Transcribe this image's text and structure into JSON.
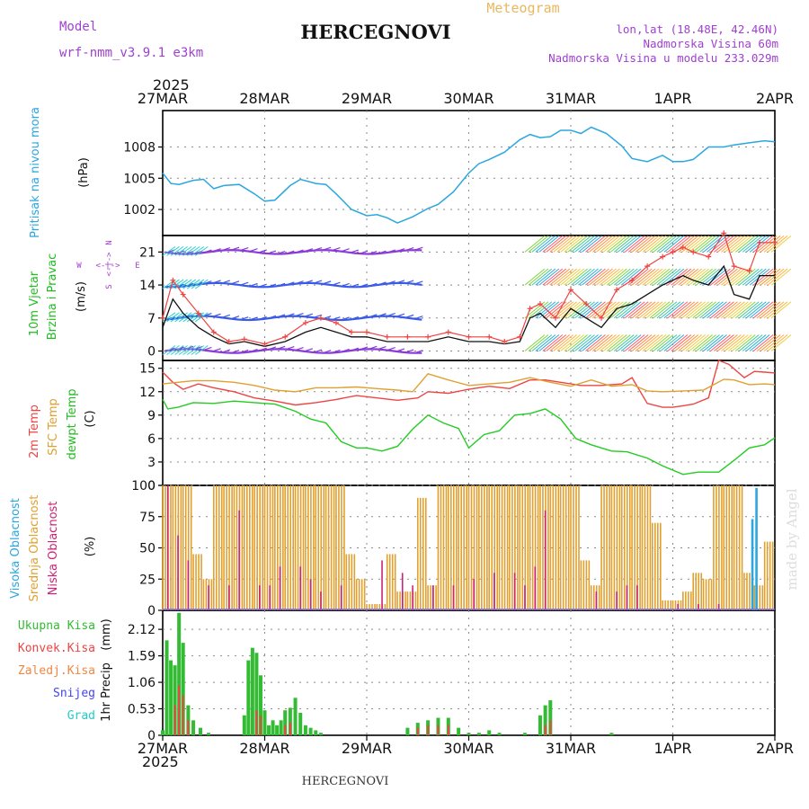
{
  "header": {
    "model_label": "Model",
    "model_name": "wrf-nmm_v3.9.1 e3km",
    "title": "HERCEGNOVI",
    "subtitle": "Meteogram",
    "lonlat": "lon,lat (18.48E, 42.46N)",
    "altitude": "Nadmorska Visina 60m",
    "model_altitude": "Nadmorska Visina u modelu 233.029m",
    "year_top": "2025",
    "year_bottom": "2025",
    "footer_title": "HERCEGNOVI",
    "watermark": "made by Angel"
  },
  "colors": {
    "pressure": "#2aa7e0",
    "wind_label": "#22bb22",
    "wind_dir_label": "#a040d0",
    "t2m": "#ee4444",
    "tsfc": "#e0a030",
    "dewpt": "#22cc22",
    "cloud_high": "#2aa7e0",
    "cloud_mid": "#e0a030",
    "cloud_low": "#cc2277",
    "precip_total": "#33bb33",
    "precip_conv": "#ee4444",
    "precip_strat": "#ee8844",
    "snow": "#4444ee",
    "grad": "#22cccc",
    "header_purple": "#a040d0",
    "header_orange": "#e8b860"
  },
  "axes": {
    "dates": [
      "27MAR",
      "28MAR",
      "29MAR",
      "30MAR",
      "31MAR",
      "1APR",
      "2APR"
    ],
    "pressure": {
      "label": "Pritisak na nivou mora",
      "unit": "(hPa)",
      "ticks": [
        "1008",
        "1005",
        "1002"
      ]
    },
    "wind": {
      "label1": "10m Vjetar",
      "label2": "Brzina i Pravac",
      "unit": "(m/s)",
      "ticks": [
        "21",
        "14",
        "7",
        "0"
      ],
      "compass_n": "N",
      "compass_s": "S",
      "compass_w": "W",
      "compass_e": "E",
      "compass_arrow": "<-|->"
    },
    "temp": {
      "label1": "2m Temp",
      "label2": "SFC Temp",
      "label3": "dewpt Temp",
      "unit": "(C)",
      "ticks": [
        "15",
        "12",
        "9",
        "6",
        "3",
        "0"
      ]
    },
    "cloud": {
      "label1": "Visoka Oblacnost",
      "label2": "Srednja Oblacnost",
      "label3": "Niska Oblacnost",
      "unit": "(%)",
      "ticks": [
        "100",
        "75",
        "50",
        "25",
        "0"
      ]
    },
    "precip": {
      "label": "1hr Precip",
      "unit": "(mm)",
      "ticks": [
        "2.12",
        "1.59",
        "1.06",
        "0.53",
        "0"
      ],
      "legend": [
        "Ukupna Kisa",
        "Konvek.Kisa",
        "Zaledj.Kisa",
        "Snijeg",
        "Grad"
      ]
    }
  },
  "chart_data": [
    {
      "type": "line",
      "title": "Pritisak na nivou mora",
      "ylabel": "(hPa)",
      "x_range_days": [
        0,
        6
      ],
      "ylim": [
        999.5,
        1011.5
      ],
      "series": [
        {
          "name": "MSLP",
          "x": [
            0,
            0.08,
            0.16,
            0.3,
            0.4,
            0.5,
            0.6,
            0.75,
            0.9,
            1.0,
            1.1,
            1.25,
            1.35,
            1.5,
            1.6,
            1.7,
            1.85,
            2.0,
            2.1,
            2.2,
            2.3,
            2.45,
            2.6,
            2.7,
            2.85,
            3.0,
            3.1,
            3.2,
            3.35,
            3.5,
            3.6,
            3.7,
            3.8,
            3.9,
            4.0,
            4.1,
            4.2,
            4.35,
            4.5,
            4.6,
            4.75,
            4.9,
            5.0,
            5.1,
            5.2,
            5.35,
            5.5,
            5.6,
            5.75,
            5.9,
            6.0
          ],
          "values": [
            1005.5,
            1004.5,
            1004.4,
            1004.8,
            1004.9,
            1004.0,
            1004.3,
            1004.4,
            1003.5,
            1002.8,
            1002.9,
            1004.3,
            1004.9,
            1004.5,
            1004.4,
            1003.5,
            1002.0,
            1001.4,
            1001.5,
            1001.2,
            1000.7,
            1001.3,
            1002.1,
            1002.5,
            1003.7,
            1005.5,
            1006.4,
            1006.8,
            1007.5,
            1008.7,
            1009.2,
            1008.9,
            1009.0,
            1009.6,
            1009.6,
            1009.3,
            1009.9,
            1009.3,
            1008.1,
            1006.9,
            1006.6,
            1007.2,
            1006.6,
            1006.6,
            1006.8,
            1008.0,
            1008.0,
            1008.2,
            1008.4,
            1008.6,
            1008.5
          ]
        }
      ]
    },
    {
      "type": "line",
      "title": "10m Vjetar Brzina i Pravac",
      "ylabel": "(m/s)",
      "x_range_days": [
        0,
        6
      ],
      "ylim": [
        -2,
        24.5
      ],
      "series": [
        {
          "name": "Brzina",
          "x": [
            0,
            0.1,
            0.2,
            0.35,
            0.5,
            0.65,
            0.8,
            1.0,
            1.2,
            1.4,
            1.55,
            1.7,
            1.85,
            2.0,
            2.2,
            2.4,
            2.6,
            2.8,
            3.0,
            3.2,
            3.35,
            3.5,
            3.6,
            3.7,
            3.85,
            4.0,
            4.15,
            4.3,
            4.45,
            4.6,
            4.75,
            4.9,
            5.0,
            5.1,
            5.2,
            5.35,
            5.5,
            5.6,
            5.75,
            5.85,
            6.0
          ],
          "values": [
            5,
            11,
            8,
            5,
            3,
            1.5,
            2,
            1,
            2,
            4,
            5,
            4,
            3,
            3,
            2,
            2,
            2,
            3,
            2,
            2,
            1.5,
            2,
            7,
            8,
            5,
            9,
            7,
            5,
            9,
            10,
            12,
            14,
            15,
            16,
            15,
            14,
            18,
            12,
            11,
            16,
            16
          ]
        },
        {
          "name": "Udari",
          "x": [
            0,
            0.1,
            0.2,
            0.35,
            0.5,
            0.65,
            0.8,
            1.0,
            1.2,
            1.4,
            1.55,
            1.7,
            1.85,
            2.0,
            2.2,
            2.4,
            2.6,
            2.8,
            3.0,
            3.2,
            3.35,
            3.5,
            3.6,
            3.7,
            3.85,
            4.0,
            4.15,
            4.3,
            4.45,
            4.6,
            4.75,
            4.9,
            5.0,
            5.1,
            5.2,
            5.35,
            5.5,
            5.6,
            5.75,
            5.85,
            6.0
          ],
          "values": [
            7,
            15,
            12,
            8,
            4,
            2,
            2.5,
            1.5,
            3,
            6,
            7,
            6,
            4,
            4,
            3,
            3,
            3,
            4,
            3,
            3,
            2,
            3,
            9,
            10,
            7,
            13,
            10,
            7,
            13,
            15,
            18,
            20,
            21,
            22,
            21,
            20,
            25,
            18,
            17,
            23,
            23
          ]
        }
      ],
      "direction_bands_ms": [
        21,
        14,
        7,
        0
      ],
      "direction_scale": "N <-> S, W <-> E"
    },
    {
      "type": "line",
      "title": "Temperature",
      "ylabel": "(C)",
      "x_range_days": [
        0,
        6
      ],
      "ylim": [
        0,
        16
      ],
      "series": [
        {
          "name": "2m Temp",
          "x": [
            0,
            0.1,
            0.2,
            0.35,
            0.5,
            0.7,
            0.9,
            1.1,
            1.3,
            1.5,
            1.7,
            1.9,
            2.1,
            2.3,
            2.5,
            2.6,
            2.8,
            3.0,
            3.2,
            3.4,
            3.6,
            3.75,
            3.9,
            4.1,
            4.3,
            4.5,
            4.6,
            4.75,
            4.9,
            5.0,
            5.1,
            5.2,
            5.35,
            5.45,
            5.55,
            5.7,
            5.8,
            5.9,
            6.0
          ],
          "values": [
            14.5,
            13.2,
            12.3,
            13.0,
            12.5,
            12.0,
            11.2,
            10.8,
            10.3,
            10.6,
            11.0,
            11.5,
            11.2,
            10.9,
            11.2,
            12.0,
            11.8,
            12.3,
            12.7,
            12.4,
            13.5,
            13.5,
            13.2,
            12.8,
            12.8,
            13.0,
            13.8,
            10.5,
            10.0,
            10.0,
            10.2,
            10.4,
            11.2,
            16.0,
            15.5,
            13.8,
            14.6,
            14.5,
            14.4
          ]
        },
        {
          "name": "SFC Temp",
          "x": [
            0,
            0.15,
            0.3,
            0.5,
            0.7,
            0.9,
            1.1,
            1.3,
            1.5,
            1.7,
            1.9,
            2.1,
            2.3,
            2.45,
            2.6,
            2.8,
            3.0,
            3.2,
            3.4,
            3.6,
            3.8,
            4.0,
            4.2,
            4.4,
            4.6,
            4.75,
            4.9,
            5.1,
            5.3,
            5.5,
            5.6,
            5.75,
            5.9,
            6.0
          ],
          "values": [
            13.0,
            13.2,
            13.4,
            13.4,
            13.2,
            12.8,
            12.2,
            12.0,
            12.5,
            12.5,
            12.6,
            12.4,
            12.2,
            12.0,
            14.3,
            13.5,
            12.8,
            13.0,
            13.2,
            13.8,
            13.2,
            12.7,
            13.5,
            12.7,
            12.9,
            12.1,
            12.0,
            12.1,
            12.2,
            13.6,
            13.5,
            12.9,
            13.0,
            12.9
          ]
        },
        {
          "name": "dewpt Temp",
          "x": [
            0,
            0.05,
            0.15,
            0.3,
            0.5,
            0.7,
            0.9,
            1.1,
            1.3,
            1.45,
            1.6,
            1.75,
            1.9,
            2.0,
            2.15,
            2.3,
            2.45,
            2.6,
            2.75,
            2.9,
            3.0,
            3.15,
            3.3,
            3.45,
            3.6,
            3.75,
            3.9,
            4.05,
            4.2,
            4.4,
            4.55,
            4.75,
            4.9,
            5.1,
            5.25,
            5.45,
            5.6,
            5.75,
            5.9,
            6.0
          ],
          "values": [
            11.0,
            9.8,
            10.0,
            10.6,
            10.5,
            10.8,
            10.6,
            10.4,
            9.5,
            8.5,
            8.0,
            5.6,
            4.8,
            4.8,
            4.4,
            5.0,
            7.2,
            9.0,
            8.0,
            7.3,
            4.8,
            6.5,
            7.0,
            9.0,
            9.2,
            9.8,
            8.5,
            6.0,
            5.2,
            4.4,
            4.3,
            3.5,
            2.5,
            1.4,
            1.7,
            1.7,
            3.2,
            4.8,
            5.2,
            6.1
          ]
        }
      ]
    },
    {
      "type": "bar",
      "title": "Oblacnost",
      "ylabel": "(%)",
      "x_range_days": [
        0,
        6
      ],
      "ylim": [
        0,
        100
      ],
      "series": [
        {
          "name": "Visoka Oblacnost",
          "x": [
            5.78,
            5.82
          ],
          "values": [
            73,
            98
          ]
        },
        {
          "name": "Srednja Oblacnost",
          "x": [
            0.0,
            0.1,
            0.2,
            0.3,
            0.4,
            0.5,
            0.6,
            0.7,
            0.8,
            0.9,
            1.0,
            1.1,
            1.2,
            1.3,
            1.4,
            1.5,
            1.6,
            1.7,
            1.8,
            1.9,
            2.0,
            2.1,
            2.2,
            2.3,
            2.4,
            2.5,
            2.6,
            2.7,
            2.8,
            2.9,
            3.0,
            3.1,
            3.2,
            3.3,
            3.4,
            3.5,
            3.6,
            3.7,
            3.8,
            3.9,
            4.0,
            4.1,
            4.2,
            4.3,
            4.4,
            4.5,
            4.6,
            4.7,
            4.8,
            4.9,
            5.0,
            5.1,
            5.2,
            5.3,
            5.4,
            5.5,
            5.6,
            5.7,
            5.8,
            5.9
          ],
          "values": [
            100,
            100,
            100,
            45,
            25,
            100,
            100,
            100,
            100,
            100,
            100,
            100,
            100,
            100,
            100,
            100,
            100,
            100,
            45,
            25,
            5,
            5,
            45,
            15,
            15,
            90,
            20,
            100,
            100,
            100,
            100,
            100,
            100,
            100,
            100,
            100,
            100,
            100,
            100,
            100,
            100,
            40,
            20,
            100,
            100,
            100,
            100,
            100,
            70,
            8,
            8,
            15,
            30,
            25,
            100,
            100,
            100,
            30,
            20,
            55
          ]
        },
        {
          "name": "Niska Oblacnost",
          "x": [
            0.05,
            0.15,
            0.25,
            0.45,
            0.65,
            0.75,
            0.95,
            1.05,
            1.15,
            1.35,
            1.45,
            1.55,
            1.75,
            2.15,
            2.35,
            2.45,
            2.65,
            2.85,
            3.05,
            3.25,
            3.45,
            3.55,
            3.65,
            3.75,
            4.25,
            4.45,
            4.55,
            4.65,
            5.05,
            5.25,
            5.45
          ],
          "values": [
            100,
            60,
            40,
            20,
            20,
            80,
            20,
            20,
            35,
            35,
            25,
            15,
            20,
            40,
            30,
            20,
            20,
            20,
            25,
            30,
            30,
            20,
            35,
            80,
            15,
            15,
            20,
            20,
            5,
            5,
            5
          ]
        }
      ]
    },
    {
      "type": "bar",
      "title": "1hr Precip",
      "ylabel": "(mm)",
      "x_range_days": [
        0,
        6
      ],
      "ylim": [
        0,
        2.5
      ],
      "series": [
        {
          "name": "Ukupna Kisa",
          "x": [
            0.0,
            0.04,
            0.08,
            0.12,
            0.16,
            0.2,
            0.25,
            0.3,
            0.37,
            0.45,
            0.8,
            0.84,
            0.88,
            0.92,
            0.96,
            1.0,
            1.04,
            1.08,
            1.12,
            1.16,
            1.2,
            1.25,
            1.3,
            1.35,
            1.4,
            1.45,
            1.5,
            1.55,
            2.4,
            2.5,
            2.6,
            2.7,
            2.8,
            2.9,
            3.0,
            3.1,
            3.2,
            3.3,
            3.55,
            3.7,
            3.75,
            3.8,
            4.4
          ],
          "values": [
            0.1,
            1.9,
            1.5,
            1.4,
            2.45,
            1.85,
            0.6,
            0.3,
            0.15,
            0.05,
            0.4,
            1.5,
            1.75,
            1.65,
            1.2,
            0.5,
            0.2,
            0.3,
            0.2,
            0.3,
            0.5,
            0.55,
            0.75,
            0.45,
            0.2,
            0.15,
            0.1,
            0.05,
            0.15,
            0.25,
            0.3,
            0.35,
            0.35,
            0.15,
            0.05,
            0.05,
            0.1,
            0.05,
            0.05,
            0.4,
            0.6,
            0.7,
            0.05
          ]
        },
        {
          "name": "Konvek.Kisa",
          "x": [
            0.12,
            0.16,
            0.2,
            0.25,
            0.92,
            0.96,
            1.2,
            1.25,
            2.5,
            2.6,
            2.7,
            2.8,
            3.75,
            3.8
          ],
          "values": [
            0.6,
            1.0,
            0.8,
            0.3,
            0.5,
            0.4,
            0.2,
            0.25,
            0.15,
            0.2,
            0.2,
            0.2,
            0.2,
            0.3
          ]
        },
        {
          "name": "Zaledj.Kisa",
          "x": [],
          "values": []
        },
        {
          "name": "Snijeg",
          "x": [],
          "values": []
        },
        {
          "name": "Grad",
          "x": [],
          "values": []
        }
      ]
    }
  ]
}
